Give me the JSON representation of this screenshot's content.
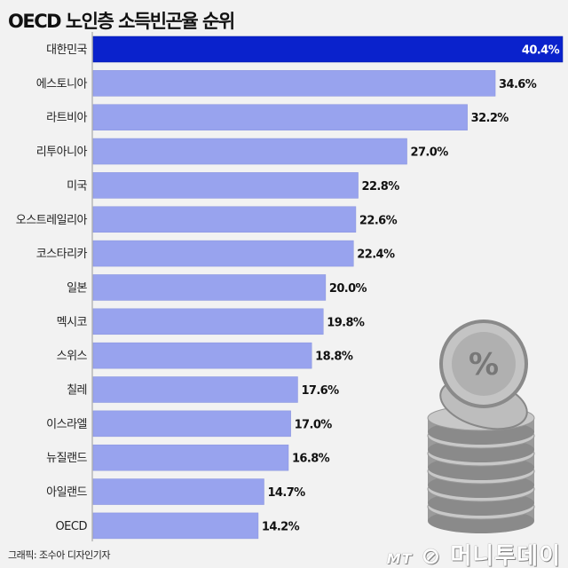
{
  "chart_data": {
    "type": "bar",
    "orientation": "horizontal",
    "title": "OECD 노인층 소득빈곤율 순위",
    "categories": [
      "대한민국",
      "에스토니아",
      "라트비아",
      "리투아니아",
      "미국",
      "오스트레일리아",
      "코스타리카",
      "일본",
      "멕시코",
      "스위스",
      "칠레",
      "이스라엘",
      "뉴질랜드",
      "아일랜드",
      "OECD"
    ],
    "values": [
      40.4,
      34.6,
      32.2,
      27.0,
      22.8,
      22.6,
      22.4,
      20.0,
      19.8,
      18.8,
      17.6,
      17.0,
      16.8,
      14.7,
      14.2
    ],
    "labels": [
      "40.4%",
      "34.6%",
      "32.2%",
      "27.0%",
      "22.8%",
      "22.6%",
      "22.4%",
      "20.0%",
      "19.8%",
      "18.8%",
      "17.6%",
      "17.0%",
      "16.8%",
      "14.7%",
      "14.2%"
    ],
    "unit": "%",
    "highlight_color": "#0a22cc",
    "bar_color": "#98a3ee",
    "grid": false,
    "xlim": [
      0,
      40.4
    ]
  },
  "credit": "그래픽: 조수아 디자인기자",
  "logo": {
    "mt": "MT",
    "name": "머니투데이"
  }
}
